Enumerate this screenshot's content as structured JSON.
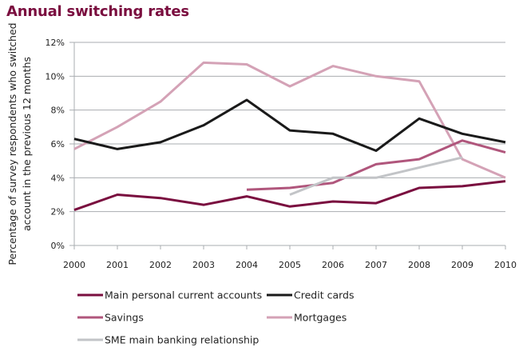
{
  "chart_data": {
    "type": "line",
    "title": "Annual switching rates",
    "xlabel": "",
    "ylabel": "Percentage of survey respondents who switched account in the previous 12 months",
    "ylabel_lines": [
      "Percentage of survey respondents who switched",
      "account in the previous 12 months"
    ],
    "x": [
      "2000",
      "2001",
      "2002",
      "2003",
      "2004",
      "2005",
      "2006",
      "2007",
      "2008",
      "2009",
      "2010"
    ],
    "ylim": [
      0,
      12
    ],
    "yticks": [
      0,
      2,
      4,
      6,
      8,
      10,
      12
    ],
    "ytick_labels": [
      "0%",
      "2%",
      "4%",
      "6%",
      "8%",
      "10%",
      "12%"
    ],
    "grid": true,
    "legend_position": "bottom",
    "series": [
      {
        "name": "Main personal current accounts",
        "color": "#7a0e3f",
        "values": [
          2.1,
          3.0,
          2.8,
          2.4,
          2.9,
          2.3,
          2.6,
          2.5,
          3.4,
          3.5,
          3.8
        ]
      },
      {
        "name": "Credit cards",
        "color": "#1a1a1a",
        "values": [
          6.3,
          5.7,
          6.1,
          7.1,
          8.6,
          6.8,
          6.6,
          5.6,
          7.5,
          6.6,
          6.1
        ]
      },
      {
        "name": "Savings",
        "color": "#b0567c",
        "values": [
          null,
          null,
          null,
          null,
          3.3,
          3.4,
          3.7,
          4.8,
          5.1,
          6.2,
          5.5
        ]
      },
      {
        "name": "Mortgages",
        "color": "#d4a2b6",
        "values": [
          5.7,
          7.0,
          8.5,
          10.8,
          10.7,
          9.4,
          10.6,
          10.0,
          9.7,
          5.1,
          4.0
        ]
      },
      {
        "name": "SME main banking relationship",
        "color": "#c2c4c7",
        "values": [
          null,
          null,
          null,
          null,
          null,
          3.0,
          4.0,
          4.0,
          4.6,
          5.2,
          null
        ]
      }
    ]
  }
}
